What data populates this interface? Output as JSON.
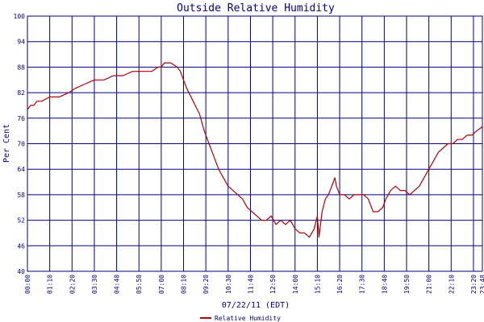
{
  "chart_data": {
    "type": "line",
    "title": "Outside Relative Humidity",
    "xlabel": "07/22/11 (EDT)",
    "ylabel": "Per Cent",
    "ylim": [
      40,
      100
    ],
    "yticks": [
      "100",
      "94",
      "88",
      "82",
      "76",
      "70",
      "64",
      "58",
      "52",
      "46",
      "40"
    ],
    "xticks": [
      "00:00",
      "01:10",
      "02:20",
      "03:30",
      "04:40",
      "05:50",
      "07:00",
      "08:10",
      "09:20",
      "10:30",
      "11:40",
      "12:50",
      "14:00",
      "15:10",
      "16:20",
      "17:30",
      "18:40",
      "19:50",
      "21:00",
      "22:10",
      "23:20",
      "23:48"
    ],
    "grid": true,
    "legend_position": "bottom-center",
    "colors": {
      "series": "#b00000",
      "grid": "#000080",
      "text": "#000080"
    },
    "series": [
      {
        "name": "Relative Humidity",
        "x": [
          "00:00",
          "00:10",
          "00:20",
          "00:30",
          "00:45",
          "01:10",
          "01:40",
          "02:10",
          "02:30",
          "03:00",
          "03:30",
          "04:00",
          "04:30",
          "05:00",
          "05:30",
          "06:00",
          "06:30",
          "06:50",
          "07:00",
          "07:10",
          "07:30",
          "07:50",
          "08:00",
          "08:10",
          "08:20",
          "08:40",
          "09:00",
          "09:15",
          "09:30",
          "09:45",
          "10:00",
          "10:15",
          "10:30",
          "10:45",
          "11:00",
          "11:15",
          "11:30",
          "11:45",
          "12:00",
          "12:15",
          "12:30",
          "12:45",
          "13:00",
          "13:15",
          "13:30",
          "13:45",
          "14:00",
          "14:15",
          "14:30",
          "14:45",
          "15:00",
          "15:10",
          "15:15",
          "15:25",
          "15:35",
          "15:45",
          "16:00",
          "16:05",
          "16:10",
          "16:15",
          "16:20",
          "16:35",
          "16:50",
          "17:05",
          "17:20",
          "17:35",
          "17:50",
          "18:05",
          "18:20",
          "18:35",
          "18:45",
          "19:00",
          "19:15",
          "19:30",
          "19:45",
          "20:00",
          "20:15",
          "20:30",
          "20:45",
          "21:00",
          "21:15",
          "21:30",
          "21:45",
          "22:00",
          "22:15",
          "22:30",
          "22:45",
          "23:00",
          "23:15",
          "23:30",
          "23:48"
        ],
        "y": [
          78,
          79,
          79,
          80,
          80,
          81,
          81,
          82,
          83,
          84,
          85,
          85,
          86,
          86,
          87,
          87,
          87,
          88,
          88,
          89,
          89,
          88,
          87,
          85,
          83,
          80,
          77,
          73,
          70,
          67,
          64,
          62,
          60,
          59,
          58,
          57,
          55,
          54,
          53,
          52,
          52,
          53,
          51,
          52,
          51,
          52,
          50,
          49,
          49,
          48,
          50,
          53,
          48,
          54,
          57,
          58,
          61,
          62,
          60,
          59,
          58,
          58,
          57,
          58,
          58,
          58,
          57,
          54,
          54,
          55,
          57,
          59,
          60,
          59,
          59,
          58,
          59,
          60,
          62,
          64,
          66,
          68,
          69,
          70,
          70,
          71,
          71,
          72,
          72,
          73,
          74
        ]
      }
    ]
  }
}
